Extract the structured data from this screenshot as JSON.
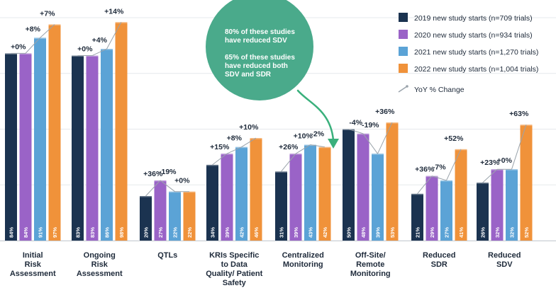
{
  "chart_data": {
    "type": "bar",
    "categories": [
      [
        "Initial",
        "Risk",
        "Assessment"
      ],
      [
        "Ongoing",
        "Risk",
        "Assessment"
      ],
      [
        "QTLs"
      ],
      [
        "KRIs Specific",
        "to Data",
        "Quality/ Patient",
        "Safety"
      ],
      [
        "Centralized",
        "Monitoring"
      ],
      [
        "Off-Site/",
        "Remote",
        "Monitoring"
      ],
      [
        "Reduced",
        "SDR"
      ],
      [
        "Reduced",
        "SDV"
      ]
    ],
    "series": [
      {
        "name": "2019 new study starts (n=709 trials)",
        "color": "#1b3350",
        "values": [
          84,
          83,
          20,
          34,
          31,
          50,
          21,
          26
        ],
        "labels": [
          "84%",
          "83%",
          "20%",
          "34%",
          "31%",
          "50%",
          "21%",
          "26%"
        ]
      },
      {
        "name": "2020 new study starts (n=934 trials)",
        "color": "#9a63c7",
        "values": [
          84,
          83,
          27,
          39,
          39,
          48,
          29,
          32
        ],
        "labels": [
          "84%",
          "83%",
          "27%",
          "39%",
          "39%",
          "48%",
          "29%",
          "32%"
        ]
      },
      {
        "name": "2021 new study starts (n=1,270 trials)",
        "color": "#5ba3d6",
        "values": [
          91,
          86,
          22,
          42,
          43,
          39,
          27,
          32
        ],
        "labels": [
          "91%",
          "86%",
          "22%",
          "42%",
          "43%",
          "39%",
          "27%",
          "32%"
        ]
      },
      {
        "name": "2022 new study starts (n=1,004 trials)",
        "color": "#f0923a",
        "values": [
          97,
          98,
          22,
          46,
          42,
          53,
          41,
          52
        ],
        "labels": [
          "97%",
          "98%",
          "22%",
          "46%",
          "42%",
          "53%",
          "41%",
          "52%"
        ]
      }
    ],
    "yoy_change": [
      [
        "+0%",
        "+8%",
        "+7%"
      ],
      [
        "+0%",
        "+4%",
        "+14%"
      ],
      [
        "+36%",
        "-19%",
        "+0%"
      ],
      [
        "+15%",
        "+8%",
        "+10%"
      ],
      [
        "+26%",
        "+10%",
        "-2%"
      ],
      [
        "-4%",
        "-19%",
        "+36%"
      ],
      [
        "+36%",
        "-7%",
        "+52%"
      ],
      [
        "+23%",
        "+0%",
        "+63%"
      ]
    ],
    "ylim": [
      0,
      100
    ],
    "legend": {
      "position": "top-right",
      "yoy_label": "YoY % Change",
      "yoy_color": "#9aa3ab"
    },
    "callout": {
      "lines": [
        "80% of these studies",
        "have reduced SDV",
        "",
        "65% of these studies",
        "have reduced both",
        "SDV and SDR"
      ],
      "color": "#4aaa8b",
      "arrow_color": "#3ab07c"
    }
  }
}
